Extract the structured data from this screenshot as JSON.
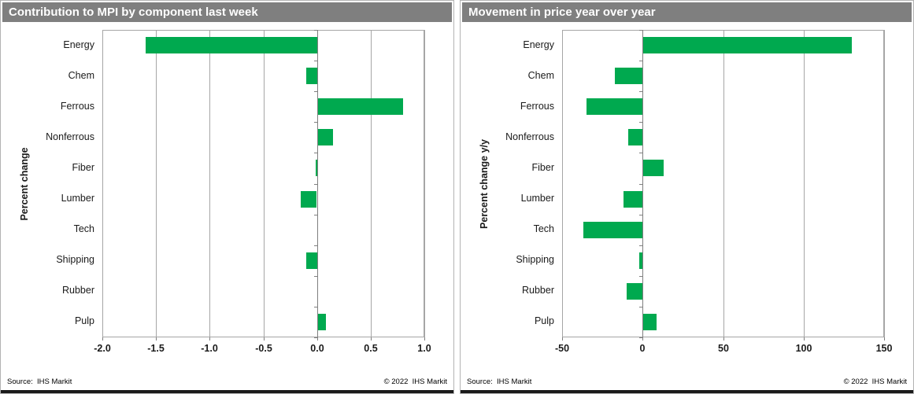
{
  "colors": {
    "bar_green": "#00a94f",
    "header_bg": "#7f7f7f",
    "header_text": "#ffffff",
    "gridline": "#a6a6a6",
    "axis": "#7f7f7f",
    "label_text": "#1a1a1a",
    "bottom_strip": "#1a1a1a",
    "background": "#ffffff"
  },
  "chart_data": [
    {
      "type": "bar",
      "orientation": "horizontal",
      "title": "Contribution to MPI by component last week",
      "ylabel": "Percent change",
      "xlabel": "",
      "categories": [
        "Energy",
        "Chem",
        "Ferrous",
        "Nonferrous",
        "Fiber",
        "Lumber",
        "Tech",
        "Shipping",
        "Rubber",
        "Pulp"
      ],
      "values": [
        -1.6,
        -0.1,
        0.8,
        0.15,
        -0.01,
        -0.15,
        0,
        -0.1,
        0,
        0.08
      ],
      "xlim": [
        -2.0,
        1.0
      ],
      "xstep": 0.5,
      "xtick_labels": [
        "-2.0",
        "-1.5",
        "-1.0",
        "-0.5",
        "0.0",
        "0.5",
        "1.0"
      ],
      "grid": true,
      "legend": false,
      "source": "Source:  IHS Markit",
      "copyright": "© 2022  IHS Markit"
    },
    {
      "type": "bar",
      "orientation": "horizontal",
      "title": "Movement in price year over year",
      "ylabel": "Percent change y/y",
      "xlabel": "",
      "categories": [
        "Energy",
        "Chem",
        "Ferrous",
        "Nonferrous",
        "Fiber",
        "Lumber",
        "Tech",
        "Shipping",
        "Rubber",
        "Pulp"
      ],
      "values": [
        130,
        -17,
        -35,
        -9,
        13,
        -12,
        -37,
        -2,
        -10,
        9
      ],
      "xlim": [
        -50,
        150
      ],
      "xstep": 50,
      "xtick_labels": [
        "-50",
        "0",
        "50",
        "100",
        "150"
      ],
      "grid": true,
      "legend": false,
      "source": "Source:  IHS Markit",
      "copyright": "© 2022  IHS Markit"
    }
  ]
}
